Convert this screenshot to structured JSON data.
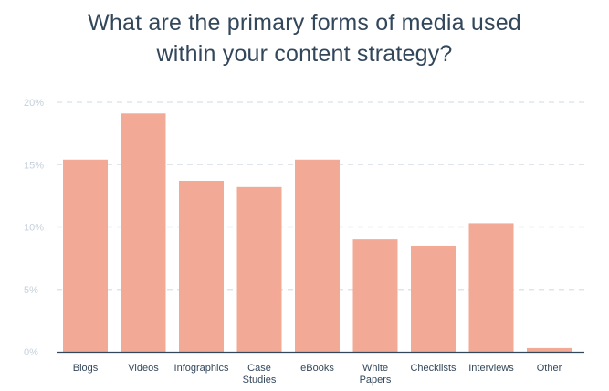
{
  "chart_data": {
    "type": "bar",
    "title_lines": [
      "What are the primary forms of media used",
      "within your content strategy?"
    ],
    "categories": [
      [
        "Blogs"
      ],
      [
        "Videos"
      ],
      [
        "Infographics"
      ],
      [
        "Case",
        "Studies"
      ],
      [
        "eBooks"
      ],
      [
        "White",
        "Papers"
      ],
      [
        "Checklists"
      ],
      [
        "Interviews"
      ],
      [
        "Other"
      ]
    ],
    "values": [
      15.4,
      19.1,
      13.7,
      13.2,
      15.4,
      9.0,
      8.5,
      10.3,
      0.3
    ],
    "ylim": [
      0,
      20
    ],
    "yticks": [
      0,
      5,
      10,
      15,
      20
    ],
    "ytick_labels": [
      "0%",
      "5%",
      "10%",
      "15%",
      "20%"
    ],
    "grid": true,
    "bar_color": "#f2a995",
    "grid_color": "#dfe5eb",
    "axis_color": "#33475b",
    "title_color": "#33475b"
  }
}
